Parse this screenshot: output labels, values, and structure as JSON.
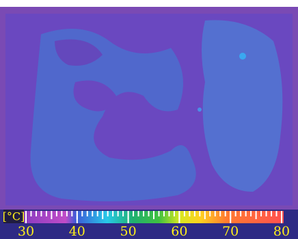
{
  "unit": "[°C]",
  "scale": {
    "ticks": [
      30,
      40,
      50,
      60,
      70,
      80
    ]
  }
}
